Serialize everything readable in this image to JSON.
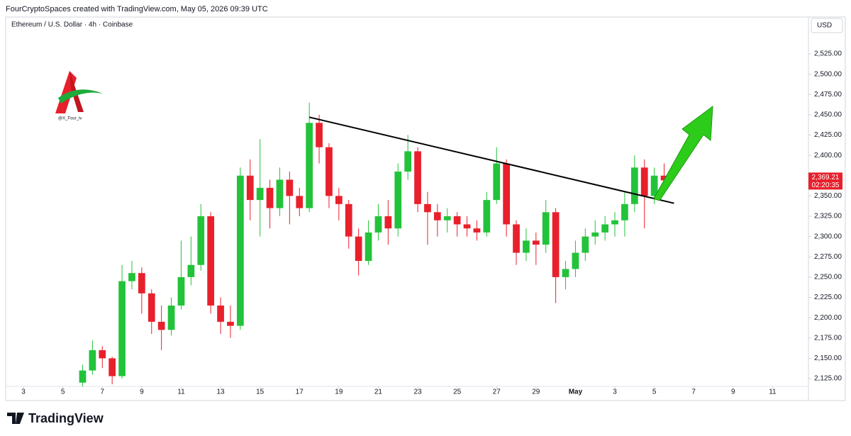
{
  "chart_data": {
    "type": "candlestick",
    "attribution": "FourCryptoSpaces created with TradingView.com, May 05, 2026 09:39 UTC",
    "title": "Ethereum / U.S. Dollar · 4h · Coinbase",
    "currency": "USD",
    "watermark": "@X_Four_iv",
    "brand": "TradingView",
    "up_color": "#22c33a",
    "down_color": "#e8202c",
    "x": [
      6,
      6.5,
      7,
      7.5,
      8,
      8.5,
      9,
      9.5,
      10,
      10.5,
      11,
      11.5,
      12,
      12.5,
      13,
      13.5,
      14,
      14.5,
      15,
      15.5,
      16,
      16.5,
      17,
      17.5,
      18,
      18.5,
      19,
      19.5,
      20,
      20.5,
      21,
      21.5,
      22,
      22.5,
      23,
      23.5,
      24,
      24.5,
      25,
      25.5,
      26,
      26.5,
      27,
      27.5,
      28,
      28.5,
      29,
      29.5,
      30,
      30.5,
      31,
      31.5,
      32,
      32.5,
      33,
      33.5,
      34,
      34.5,
      35,
      35.5
    ],
    "open": [
      2120,
      2135,
      2160,
      2150,
      2128,
      2245,
      2255,
      2230,
      2195,
      2185,
      2215,
      2250,
      2265,
      2325,
      2215,
      2195,
      2190,
      2375,
      2345,
      2360,
      2335,
      2370,
      2350,
      2335,
      2440,
      2410,
      2350,
      2340,
      2300,
      2270,
      2305,
      2325,
      2310,
      2380,
      2405,
      2340,
      2330,
      2320,
      2325,
      2315,
      2310,
      2305,
      2345,
      2390,
      2315,
      2280,
      2295,
      2290,
      2330,
      2250,
      2260,
      2280,
      2300,
      2305,
      2315,
      2320,
      2340,
      2385,
      2350,
      2375
    ],
    "high": [
      2142,
      2172,
      2165,
      2152,
      2265,
      2270,
      2262,
      2235,
      2215,
      2225,
      2295,
      2300,
      2340,
      2330,
      2225,
      2215,
      2385,
      2395,
      2420,
      2370,
      2385,
      2380,
      2360,
      2465,
      2450,
      2415,
      2360,
      2345,
      2310,
      2320,
      2340,
      2345,
      2390,
      2425,
      2410,
      2355,
      2340,
      2335,
      2330,
      2325,
      2320,
      2355,
      2410,
      2395,
      2320,
      2310,
      2305,
      2345,
      2335,
      2270,
      2295,
      2310,
      2320,
      2325,
      2330,
      2355,
      2400,
      2395,
      2385,
      2390
    ],
    "low": [
      2115,
      2130,
      2138,
      2118,
      2125,
      2235,
      2205,
      2180,
      2160,
      2178,
      2210,
      2240,
      2258,
      2205,
      2180,
      2175,
      2185,
      2320,
      2300,
      2310,
      2325,
      2315,
      2325,
      2330,
      2390,
      2335,
      2320,
      2285,
      2252,
      2265,
      2295,
      2290,
      2300,
      2370,
      2330,
      2290,
      2300,
      2305,
      2300,
      2300,
      2295,
      2300,
      2340,
      2300,
      2265,
      2270,
      2265,
      2280,
      2218,
      2235,
      2250,
      2270,
      2290,
      2295,
      2300,
      2300,
      2330,
      2310,
      2340,
      2360
    ],
    "close": [
      2135,
      2160,
      2150,
      2128,
      2245,
      2255,
      2230,
      2195,
      2185,
      2215,
      2250,
      2265,
      2325,
      2215,
      2195,
      2190,
      2375,
      2345,
      2360,
      2335,
      2370,
      2350,
      2335,
      2440,
      2410,
      2350,
      2340,
      2300,
      2270,
      2305,
      2325,
      2310,
      2380,
      2405,
      2340,
      2330,
      2320,
      2325,
      2315,
      2310,
      2305,
      2345,
      2390,
      2315,
      2280,
      2295,
      2290,
      2330,
      2250,
      2260,
      2280,
      2300,
      2305,
      2315,
      2320,
      2340,
      2385,
      2350,
      2375,
      2369.21
    ],
    "last_price": {
      "value": 2369.21,
      "label": "2,369.21"
    },
    "countdown": "02:20:35",
    "trendline": {
      "x": [
        17.5,
        36
      ],
      "y": [
        2447,
        2341
      ]
    },
    "xlim": [
      2.17,
      42.82
    ],
    "ylim": [
      2112.8,
      2551.2
    ],
    "xticks": [
      3,
      5,
      7,
      9,
      11,
      13,
      15,
      17,
      19,
      21,
      23,
      25,
      27,
      29,
      {
        "value": 31,
        "label": "May"
      },
      {
        "value": 33,
        "label": "3"
      },
      {
        "value": 35,
        "label": "5"
      },
      {
        "value": 37,
        "label": "7"
      },
      {
        "value": 39,
        "label": "9"
      },
      {
        "value": 41,
        "label": "11"
      }
    ],
    "yticks": [
      {
        "value": 2125,
        "label": "2,125.00"
      },
      {
        "value": 2150,
        "label": "2,150.00"
      },
      {
        "value": 2175,
        "label": "2,175.00"
      },
      {
        "value": 2200,
        "label": "2,200.00"
      },
      {
        "value": 2225,
        "label": "2,225.00"
      },
      {
        "value": 2250,
        "label": "2,250.00"
      },
      {
        "value": 2275,
        "label": "2,275.00"
      },
      {
        "value": 2300,
        "label": "2,300.00"
      },
      {
        "value": 2325,
        "label": "2,325.00"
      },
      {
        "value": 2350,
        "label": "2,350.00"
      },
      {
        "value": 2375,
        "label": "2,375.00"
      },
      {
        "value": 2400,
        "label": "2,400.00"
      },
      {
        "value": 2425,
        "label": "2,425.00"
      },
      {
        "value": 2450,
        "label": "2,450.00"
      },
      {
        "value": 2475,
        "label": "2,475.00"
      },
      {
        "value": 2500,
        "label": "2,500.00"
      },
      {
        "value": 2525,
        "label": "2,525.00"
      }
    ],
    "grid": false
  }
}
